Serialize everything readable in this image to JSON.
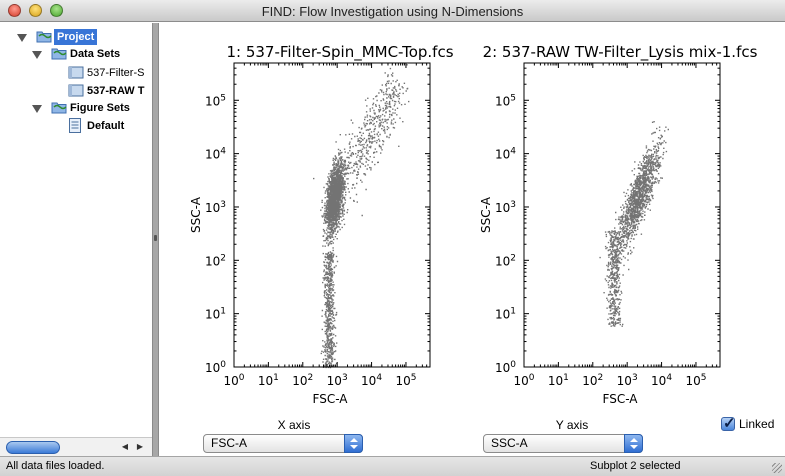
{
  "window": {
    "title": "FIND: Flow Investigation using N-Dimensions"
  },
  "tree": {
    "project": "Project",
    "data_sets": "Data Sets",
    "files": [
      "537-Filter-S",
      "537-RAW T"
    ],
    "figure_sets": "Figure Sets",
    "figures": [
      "Default"
    ]
  },
  "plots": [
    {
      "title": "1: 537-Filter-Spin_MMC-Top.fcs",
      "xlabel": "FSC-A",
      "ylabel": "SSC-A"
    },
    {
      "title": "2: 537-RAW TW-Filter_Lysis mix-1.fcs",
      "xlabel": "FSC-A",
      "ylabel": "SSC-A"
    }
  ],
  "chart_data": [
    {
      "type": "scatter",
      "title": "1: 537-Filter-Spin_MMC-Top.fcs",
      "xlabel": "FSC-A",
      "ylabel": "SSC-A",
      "xscale": "log",
      "yscale": "log",
      "xlim": [
        1,
        500000
      ],
      "ylim": [
        1,
        500000
      ],
      "xticks": [
        "10^0",
        "10^1",
        "10^2",
        "10^3",
        "10^4",
        "10^5"
      ],
      "yticks": [
        "10^0",
        "10^1",
        "10^2",
        "10^3",
        "10^4",
        "10^5"
      ],
      "clusters": [
        {
          "center_x": 800,
          "center_y": 1500,
          "note": "dense core"
        },
        {
          "center_x": 30000,
          "center_y": 100000,
          "note": "sparse upper tail"
        }
      ]
    },
    {
      "type": "scatter",
      "title": "2: 537-RAW TW-Filter_Lysis mix-1.fcs",
      "xlabel": "FSC-A",
      "ylabel": "SSC-A",
      "xscale": "log",
      "yscale": "log",
      "xlim": [
        1,
        500000
      ],
      "ylim": [
        1,
        500000
      ],
      "xticks": [
        "10^0",
        "10^1",
        "10^2",
        "10^3",
        "10^4",
        "10^5"
      ],
      "yticks": [
        "10^0",
        "10^1",
        "10^2",
        "10^3",
        "10^4",
        "10^5"
      ],
      "clusters": [
        {
          "center_x": 2000,
          "center_y": 1500,
          "note": "dense diagonal core"
        }
      ]
    }
  ],
  "controls": {
    "x_axis_label": "X axis",
    "x_axis_value": "FSC-A",
    "y_axis_label": "Y axis",
    "y_axis_value": "SSC-A",
    "linked_label": "Linked",
    "linked_checked": true
  },
  "status": {
    "left": "All data files loaded.",
    "right": "Subplot 2 selected"
  },
  "colors": {
    "selection": "#3875d7",
    "points": "#000000",
    "accent": "#2f6ed2"
  }
}
